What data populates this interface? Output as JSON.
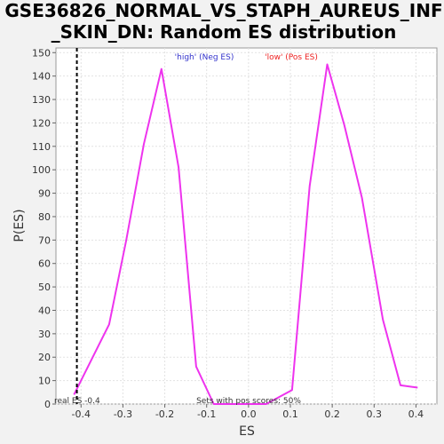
{
  "chart_data": {
    "type": "line",
    "title_line1": "GSE36826_NORMAL_VS_STAPH_AUREUS_INF",
    "title_line2": "_SKIN_DN: Random ES distribution",
    "xlabel": "ES",
    "ylabel": "P(ES)",
    "xlim": [
      -0.46,
      0.45
    ],
    "ylim": [
      0,
      152
    ],
    "x_ticks": [
      -0.4,
      -0.3,
      -0.2,
      -0.1,
      0.0,
      0.1,
      0.2,
      0.3,
      0.4
    ],
    "x_tick_labels": [
      "-0.4",
      "-0.3",
      "-0.2",
      "-0.1",
      "0.0",
      "0.1",
      "0.2",
      "0.3",
      "0.4"
    ],
    "y_ticks": [
      0,
      10,
      20,
      30,
      40,
      50,
      60,
      70,
      80,
      90,
      100,
      110,
      120,
      130,
      140,
      150
    ],
    "grid": true,
    "legend": [
      {
        "label": "'high' (Neg ES)",
        "color": "#3333cc"
      },
      {
        "label": "'low' (Pos ES)",
        "color": "#ee2222"
      }
    ],
    "series": [
      {
        "color": "#ee33ee",
        "x": [
          -0.417,
          -0.333,
          -0.292,
          -0.25,
          -0.208,
          -0.167,
          -0.125,
          -0.083,
          -0.042,
          0.0,
          0.042,
          0.104,
          0.146,
          0.188,
          0.229,
          0.271,
          0.321,
          0.363,
          0.404
        ],
        "y": [
          4,
          34,
          70,
          111,
          143,
          101,
          16,
          0,
          0,
          0,
          0,
          6,
          93,
          145,
          119,
          88,
          36,
          8,
          7
        ]
      }
    ],
    "real_es": {
      "x": -0.41,
      "label": "real ES -0.4",
      "color": "#000000"
    },
    "annotation": "Sets with pos scores: 50%"
  }
}
